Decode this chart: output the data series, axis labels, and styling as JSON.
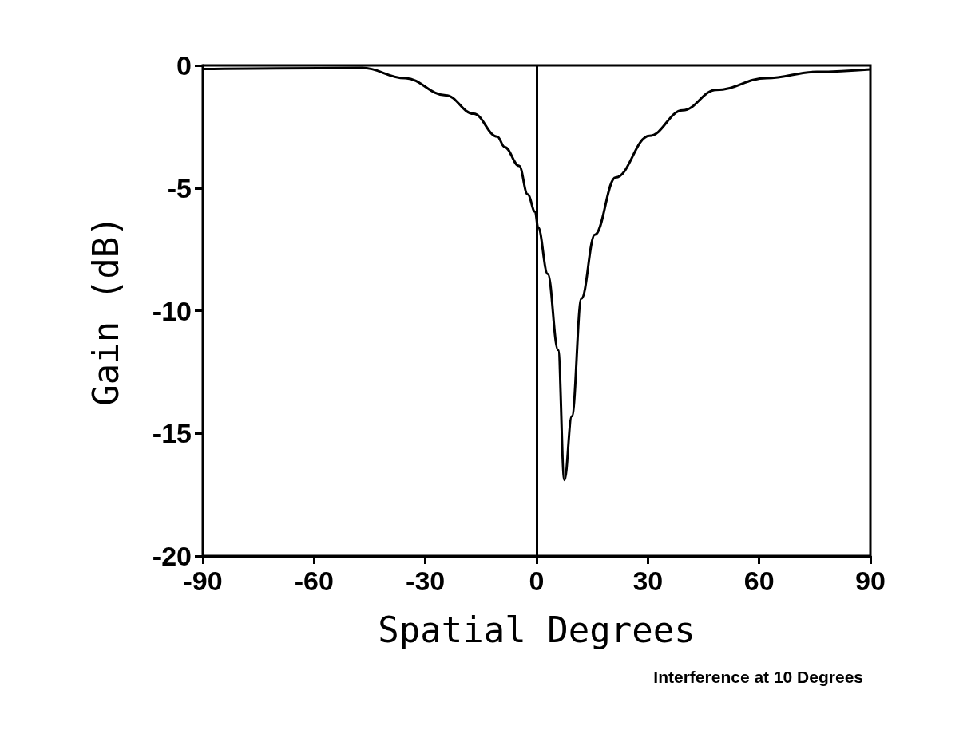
{
  "chart_data": {
    "type": "line",
    "xlabel": "Spatial Degrees",
    "ylabel": "Gain (dB)",
    "annotations": [
      "Interference at 10 Degrees"
    ],
    "x": [
      -90,
      -70,
      -47,
      -35.5,
      -24.5,
      -17,
      -10.6,
      -8.6,
      -4.7,
      -2.4,
      -0.4,
      0.4,
      3,
      5.8,
      7.5,
      9.5,
      12.1,
      15.7,
      21.3,
      30.4,
      39.4,
      48.4,
      62,
      75.6,
      90
    ],
    "series": [
      {
        "color": "#000000",
        "values": [
          -0.15,
          -0.12,
          -0.1,
          -0.52,
          -1.22,
          -1.97,
          -2.9,
          -3.33,
          -4.1,
          -5.26,
          -5.97,
          -6.6,
          -8.5,
          -11.6,
          -16.9,
          -14.3,
          -9.5,
          -6.9,
          -4.57,
          -2.87,
          -1.83,
          -1.0,
          -0.52,
          -0.26,
          -0.16
        ]
      }
    ],
    "xlim": [
      -90,
      90
    ],
    "xticks": [
      -90,
      -60,
      -30,
      0,
      30,
      60,
      90
    ],
    "ylim": [
      -20,
      0
    ],
    "yticks": [
      -20,
      -15,
      -10,
      -5,
      0
    ],
    "ref_lines": [
      {
        "axis": "x",
        "value": 0,
        "label": null,
        "color": "#000000"
      }
    ],
    "marker": "none",
    "line_style": "solid"
  }
}
